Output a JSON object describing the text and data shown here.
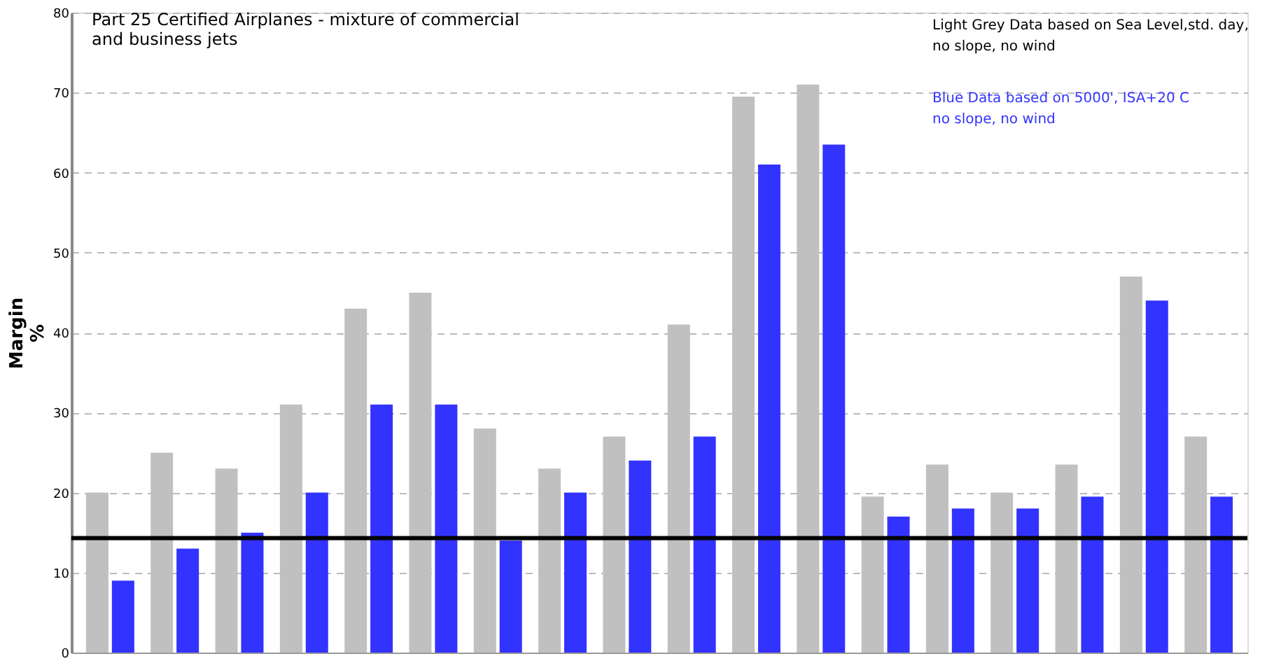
{
  "chart_data": {
    "type": "bar",
    "title": "Part 25 Certified Airplanes - mixture of commercial\nand business jets",
    "ylabel": "Margin\n%",
    "categories": [
      null,
      null,
      null,
      null,
      null,
      null,
      null,
      null,
      null,
      null,
      null,
      null,
      null,
      null,
      null,
      null,
      null,
      null
    ],
    "series": [
      {
        "color": "#c0c0c0",
        "values": [
          20,
          25,
          23,
          31,
          43,
          45,
          28,
          23,
          27,
          41,
          69.5,
          71,
          19.5,
          23.5,
          20,
          23.5,
          47,
          27
        ]
      },
      {
        "color": "#3333ff",
        "values": [
          9,
          13,
          15,
          20,
          31,
          31,
          14,
          20,
          24,
          27,
          61,
          63.5,
          17,
          18,
          18,
          19.5,
          44,
          19.5
        ]
      }
    ],
    "ylim": [
      0,
      80
    ],
    "yticks": [
      0,
      10,
      20,
      30,
      40,
      50,
      60,
      70,
      80
    ],
    "grid": "y",
    "tick_labels": "y",
    "legend": false,
    "ref_lines": [
      {
        "axis": "y",
        "value": 14.3,
        "color": "#000000"
      }
    ],
    "annotations": [
      "Light Grey Data based on Sea Level,std. day,\nno slope, no wind",
      "Blue Data based on 5000', ISA+20 C\nno slope, no wind"
    ]
  }
}
